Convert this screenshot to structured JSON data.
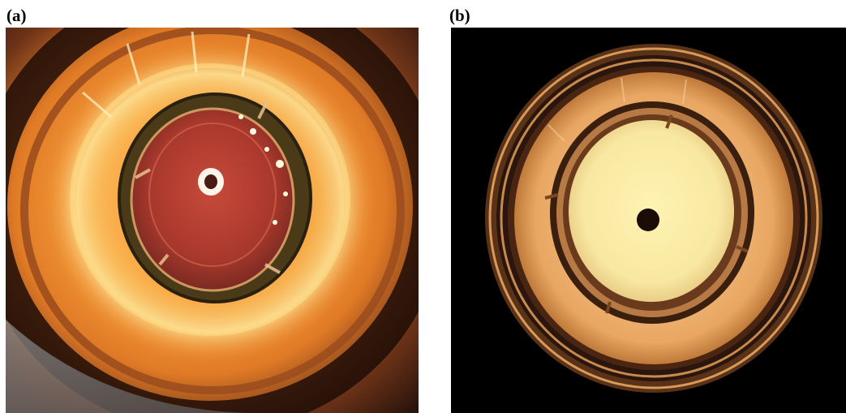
{
  "figure": {
    "panels": [
      {
        "label": "(a)"
      },
      {
        "label": "(b)"
      }
    ]
  },
  "colors": {
    "glow_a": "#f7a03a",
    "inner_a": "#b23a2c",
    "ring_b": "#e8a763",
    "inner_b": "#f8e8a0",
    "background_b": "#000000"
  }
}
